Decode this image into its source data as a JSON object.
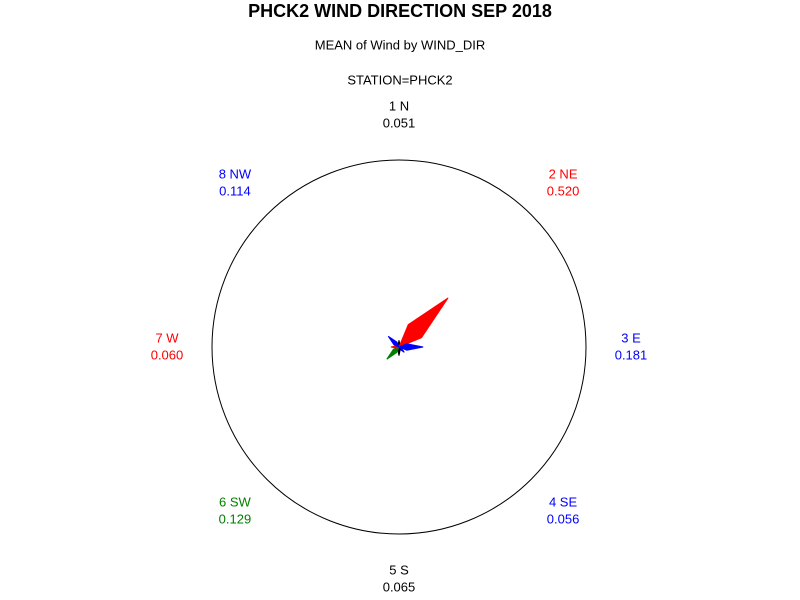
{
  "chart_data": {
    "type": "star",
    "title": "PHCK2 WIND DIRECTION SEP 2018",
    "subtitle": "MEAN of Wind by WIND_DIR",
    "station": "STATION=PHCK2",
    "categories": [
      "1 N",
      "2 NE",
      "3 E",
      "4 SE",
      "5 S",
      "6 SW",
      "7 W",
      "8 NW"
    ],
    "values": [
      0.051,
      0.52,
      0.181,
      0.056,
      0.065,
      0.129,
      0.06,
      0.114
    ],
    "value_labels": [
      "0.051",
      "0.520",
      "0.181",
      "0.056",
      "0.065",
      "0.129",
      "0.060",
      "0.114"
    ],
    "colors": [
      "#000000",
      "#ff0000",
      "#0000ff",
      "#0000ff",
      "#000000",
      "#008000",
      "#ff0000",
      "#0000ff"
    ],
    "rlim": [
      0,
      1.4
    ]
  }
}
